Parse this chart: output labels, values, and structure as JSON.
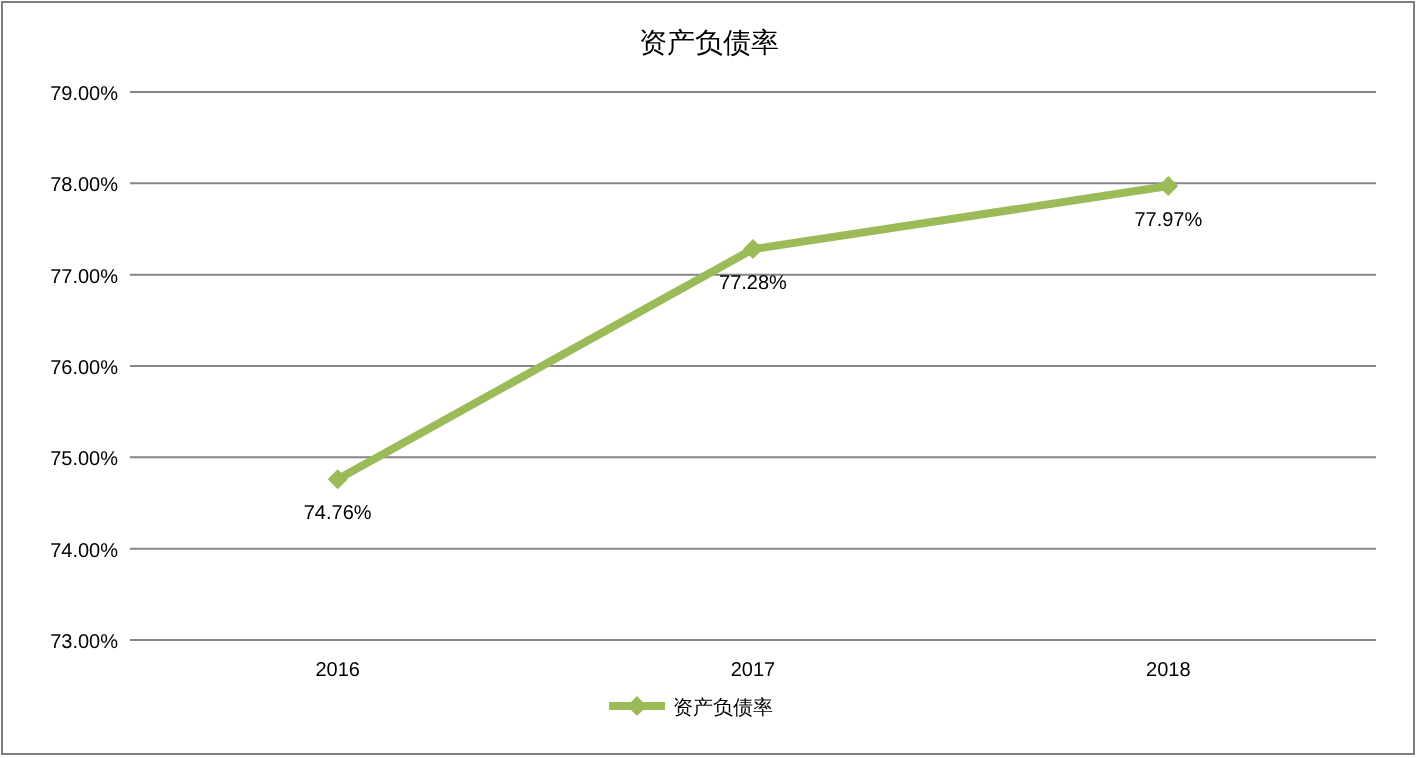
{
  "chart_data": {
    "type": "line",
    "title": "资产负债率",
    "categories": [
      "2016",
      "2017",
      "2018"
    ],
    "series": [
      {
        "name": "资产负债率",
        "color": "#9bbb59",
        "values": [
          74.76,
          77.28,
          77.97
        ],
        "value_labels": [
          "74.76%",
          "77.28%",
          "77.97%"
        ]
      }
    ],
    "ylim": [
      73,
      79
    ],
    "yticks": [
      {
        "value": 73,
        "label": "73.00%"
      },
      {
        "value": 74,
        "label": "74.00%"
      },
      {
        "value": 75,
        "label": "75.00%"
      },
      {
        "value": 76,
        "label": "76.00%"
      },
      {
        "value": 77,
        "label": "77.00%"
      },
      {
        "value": 78,
        "label": "78.00%"
      },
      {
        "value": 79,
        "label": "79.00%"
      }
    ],
    "grid": "y",
    "legend": "bottom",
    "marker": "diamond"
  }
}
